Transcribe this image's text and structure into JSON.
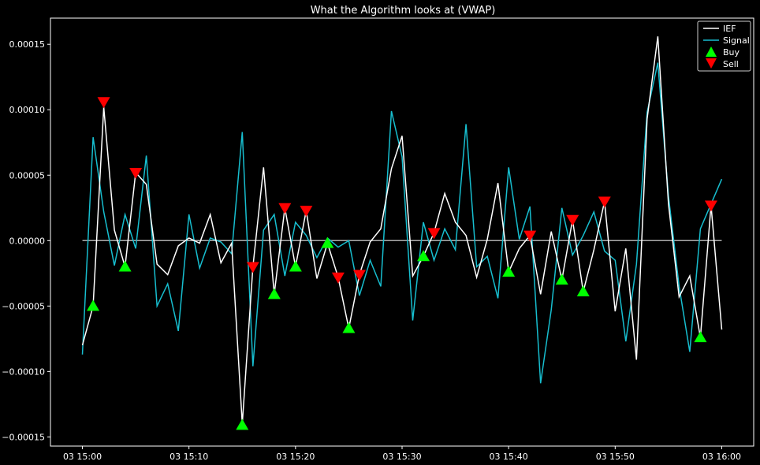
{
  "chart_data": {
    "type": "line",
    "title": "What the Algorithm looks at (VWAP)",
    "xlabel": "",
    "ylabel": "",
    "x_start_label": "03 15:00",
    "x_ticks": [
      "03 15:00",
      "03 15:10",
      "03 15:20",
      "03 15:30",
      "03 15:40",
      "03 15:50",
      "03 16:00"
    ],
    "x_tick_minutes": [
      0,
      10,
      20,
      30,
      40,
      50,
      60
    ],
    "xlim": [
      -3,
      63
    ],
    "ylim": [
      -0.000157,
      0.00017
    ],
    "y_ticks": [
      -0.00015,
      -0.0001,
      -5e-05,
      0.0,
      5e-05,
      0.0001,
      0.00015
    ],
    "y_tick_labels": [
      "−0.00015",
      "−0.00010",
      "−0.00005",
      "0.00000",
      "0.00005",
      "0.00010",
      "0.00015"
    ],
    "baseline": 0,
    "legend": {
      "placement": "top-right",
      "entries": [
        "IEF",
        "Signal",
        "Buy",
        "Sell"
      ]
    },
    "colors": {
      "ief": "#ffffff",
      "signal": "#17becf",
      "buy": "#00ff00",
      "sell": "#ff0000",
      "baseline": "#aaaaaa"
    },
    "minutes": [
      0,
      1,
      2,
      3,
      4,
      5,
      6,
      7,
      8,
      9,
      10,
      11,
      12,
      13,
      14,
      15,
      16,
      17,
      18,
      19,
      20,
      21,
      22,
      23,
      24,
      25,
      26,
      27,
      28,
      29,
      30,
      31,
      32,
      33,
      34,
      35,
      36,
      37,
      38,
      39,
      40,
      41,
      42,
      43,
      44,
      45,
      46,
      47,
      48,
      49,
      50,
      51,
      52,
      53,
      54,
      55,
      56,
      57,
      58,
      59,
      60
    ],
    "series": [
      {
        "name": "IEF",
        "values": [
          -8e-05,
          -5e-05,
          0.000102,
          8e-06,
          -2e-05,
          5.2e-05,
          4.3e-05,
          -1.8e-05,
          -2.6e-05,
          -4e-06,
          2e-06,
          -2e-06,
          2e-05,
          -1.7e-05,
          -2e-06,
          -0.00014,
          -2e-05,
          5.6e-05,
          -4.1e-05,
          2.5e-05,
          -2e-05,
          2.3e-05,
          -2.9e-05,
          -2e-06,
          -2.8e-05,
          -6.7e-05,
          -2.6e-05,
          -1e-06,
          9e-06,
          5.5e-05,
          8e-05,
          -2.7e-05,
          -1.2e-05,
          6e-06,
          3.6e-05,
          1.4e-05,
          4e-06,
          -2.8e-05,
          1e-06,
          4.4e-05,
          -2.4e-05,
          -6e-06,
          4e-06,
          -4.1e-05,
          7e-06,
          -3e-05,
          1.6e-05,
          -3.9e-05,
          -7e-06,
          3e-05,
          -5.4e-05,
          -6e-06,
          -9.1e-05,
          9.3e-05,
          0.000156,
          2.8e-05,
          -4.3e-05,
          -2.7e-05,
          -7.4e-05,
          2.7e-05,
          -6.8e-05
        ]
      },
      {
        "name": "Signal",
        "values": [
          -8.7e-05,
          7.9e-05,
          2.2e-05,
          -1.9e-05,
          2e-05,
          -6e-06,
          6.5e-05,
          -5e-05,
          -3.3e-05,
          -6.9e-05,
          2e-05,
          -2.1e-05,
          2e-06,
          -1e-06,
          -1e-05,
          8.3e-05,
          -9.6e-05,
          8e-06,
          2e-05,
          -2.7e-05,
          1.4e-05,
          4e-06,
          -1.3e-05,
          2e-06,
          -5e-06,
          0.0,
          -4.2e-05,
          -1.5e-05,
          -3.5e-05,
          9.9e-05,
          6.4e-05,
          -6.1e-05,
          1.4e-05,
          -1.5e-05,
          9e-06,
          -7e-06,
          8.9e-05,
          -2e-05,
          -1.2e-05,
          -4.4e-05,
          5.6e-05,
          1e-06,
          2.6e-05,
          -0.000109,
          -5.3e-05,
          2.5e-05,
          -1.1e-05,
          4e-06,
          2.2e-05,
          -8e-06,
          -1.5e-05,
          -7.7e-05,
          -1.8e-05,
          9.8e-05,
          0.000136,
          3.4e-05,
          -3.5e-05,
          -8.5e-05,
          9e-06,
          2.8e-05,
          4.7e-05
        ]
      }
    ],
    "buy_points": [
      {
        "x": 1,
        "y": -5e-05
      },
      {
        "x": 4,
        "y": -2e-05
      },
      {
        "x": 15,
        "y": -0.000141
      },
      {
        "x": 18,
        "y": -4.1e-05
      },
      {
        "x": 20,
        "y": -2e-05
      },
      {
        "x": 23,
        "y": -2e-06
      },
      {
        "x": 25,
        "y": -6.7e-05
      },
      {
        "x": 32,
        "y": -1.2e-05
      },
      {
        "x": 40,
        "y": -2.4e-05
      },
      {
        "x": 45,
        "y": -3e-05
      },
      {
        "x": 47,
        "y": -3.9e-05
      },
      {
        "x": 58,
        "y": -7.4e-05
      }
    ],
    "sell_points": [
      {
        "x": 2,
        "y": 0.000106
      },
      {
        "x": 5,
        "y": 5.2e-05
      },
      {
        "x": 16,
        "y": -2e-05
      },
      {
        "x": 19,
        "y": 2.5e-05
      },
      {
        "x": 21,
        "y": 2.3e-05
      },
      {
        "x": 24,
        "y": -2.8e-05
      },
      {
        "x": 26,
        "y": -2.6e-05
      },
      {
        "x": 33,
        "y": 6e-06
      },
      {
        "x": 42,
        "y": 4e-06
      },
      {
        "x": 46,
        "y": 1.6e-05
      },
      {
        "x": 49,
        "y": 3e-05
      },
      {
        "x": 59,
        "y": 2.7e-05
      }
    ]
  }
}
